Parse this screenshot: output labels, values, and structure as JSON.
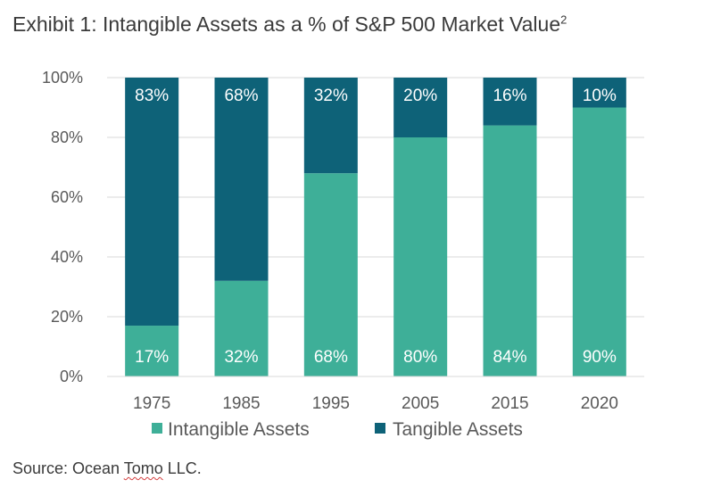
{
  "title": "Exhibit 1: Intangible Assets as a % of S&P 500 Market Value",
  "title_sup": "2",
  "source": {
    "prefix": "Source: Ocean ",
    "flagged_word": "Tomo",
    "suffix": " LLC."
  },
  "chart_data": {
    "type": "bar",
    "stacked": true,
    "categories": [
      "1975",
      "1985",
      "1995",
      "2005",
      "2015",
      "2020"
    ],
    "series": [
      {
        "name": "Intangible Assets",
        "values": [
          17,
          32,
          68,
          80,
          84,
          90
        ],
        "labels": [
          "17%",
          "32%",
          "68%",
          "80%",
          "84%",
          "90%"
        ],
        "color": "#3eaf98"
      },
      {
        "name": "Tangible Assets",
        "values": [
          83,
          68,
          32,
          20,
          16,
          10
        ],
        "labels": [
          "83%",
          "68%",
          "32%",
          "20%",
          "16%",
          "10%"
        ],
        "color": "#0e6278"
      }
    ],
    "ylim": [
      0,
      100
    ],
    "yticks": [
      "0%",
      "20%",
      "40%",
      "60%",
      "80%",
      "100%"
    ],
    "grid": true,
    "legend_position": "bottom"
  }
}
